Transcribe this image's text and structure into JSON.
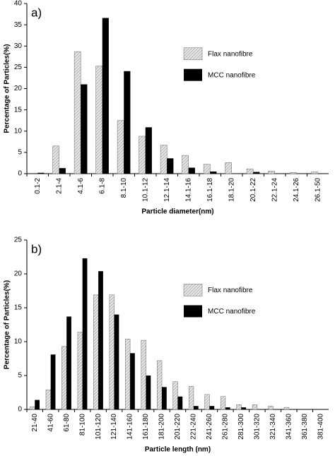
{
  "chart_data": [
    {
      "type": "bar",
      "panel_label": "a)",
      "x_label": "Particle diameter(nm)",
      "y_label": "Percentage of Particles(%)",
      "categories": [
        "0.1-2",
        "2.1-4",
        "4.1-6",
        "6.1-8",
        "8.1-10",
        "10.1-12",
        "12.1-14",
        "14.1-16",
        "16.1-18",
        "18.1-20",
        "20.1-22",
        "22.1-24",
        "24.1-26",
        "26.1-50"
      ],
      "series": [
        {
          "name": "Flax nanofibre",
          "color": "#9a9a9a",
          "hatch": true,
          "values": [
            0,
            6.5,
            28.7,
            25.3,
            12.5,
            8.8,
            6.7,
            4.3,
            2.2,
            2.6,
            1.1,
            0.6,
            0.3,
            0.4
          ]
        },
        {
          "name": "MCC nanofibre",
          "color": "#000000",
          "hatch": false,
          "values": [
            0.2,
            1.3,
            21,
            36.6,
            24.1,
            10.9,
            3.6,
            1.4,
            0.5,
            0,
            0.4,
            0,
            0,
            0
          ]
        }
      ],
      "ylim": [
        0,
        40
      ],
      "yticks": [
        0,
        5,
        10,
        15,
        20,
        25,
        30,
        35,
        40
      ],
      "legend": "upper right"
    },
    {
      "type": "bar",
      "panel_label": "b)",
      "x_label": "Particle length (nm)",
      "y_label": "Percentage of Particles(%)",
      "categories": [
        "21-40",
        "41-60",
        "61-80",
        "81-100",
        "101-120",
        "121-140",
        "141-160",
        "161-180",
        "181-200",
        "201-220",
        "221-240",
        "241-260",
        "261-280",
        "281-300",
        "301-320",
        "321-340",
        "341-360",
        "361-380",
        "381-400"
      ],
      "series": [
        {
          "name": "Flax nanofibre",
          "color": "#9a9a9a",
          "hatch": true,
          "values": [
            0.4,
            2.9,
            9.3,
            11.4,
            16.9,
            16.9,
            10.4,
            10.2,
            7.2,
            4.1,
            3.4,
            2.2,
            1.9,
            0.7,
            0.7,
            0.5,
            0.3,
            0,
            0
          ]
        },
        {
          "name": "MCC nanofibre",
          "color": "#000000",
          "hatch": false,
          "values": [
            1.4,
            8.1,
            13.7,
            22.3,
            20.4,
            14.0,
            8.3,
            5.0,
            3.3,
            1.9,
            0.5,
            0.5,
            0.3,
            0.3,
            0,
            0,
            0,
            0,
            0
          ]
        }
      ],
      "ylim": [
        0,
        25
      ],
      "yticks": [
        0,
        5,
        10,
        15,
        20,
        25
      ],
      "legend": "upper right"
    }
  ]
}
